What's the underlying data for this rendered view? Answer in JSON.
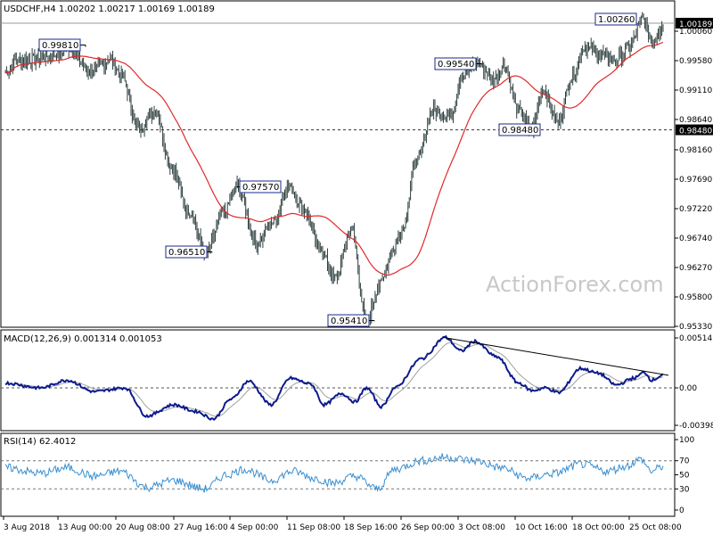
{
  "header": "USDCHF,H4  1.00202 1.00217 1.00169 1.00189",
  "watermark": "ActionForex.com",
  "colors": {
    "price": "#2f3f3f",
    "ma": "#e0282a",
    "macd": "#0c1a8c",
    "signal": "#a0a0a0",
    "rsi": "#3a8fd0",
    "annotation_border": "#1a2a8c",
    "current_bg": "#000000"
  },
  "chart_data": [
    {
      "type": "line",
      "title": "USDCHF,H4  1.00202 1.00217 1.00169 1.00189",
      "x": [
        "3 Aug 2018",
        "13 Aug 00:00",
        "20 Aug 08:00",
        "27 Aug 16:00",
        "4 Sep 00:00",
        "11 Sep 08:00",
        "18 Sep 16:00",
        "26 Sep 00:00",
        "3 Oct 08:00",
        "10 Oct 16:00",
        "18 Oct 00:00",
        "25 Oct 08:00"
      ],
      "series": [],
      "ylim": [
        0.9533,
        1.0085
      ],
      "y_ticks": [
        "1.00060",
        "0.99580",
        "0.99110",
        "0.98640",
        "0.98160",
        "0.97690",
        "0.97220",
        "0.96740",
        "0.96270",
        "0.95800",
        "0.95330"
      ],
      "current_price": "1.00189",
      "level_line": "0.98480",
      "annotations": [
        {
          "label": "0.99810",
          "value": 0.9981,
          "date": "10 Aug"
        },
        {
          "label": "0.96510",
          "value": 0.9651,
          "date": "29 Aug"
        },
        {
          "label": "0.97570",
          "value": 0.9757,
          "date": "5 Sep"
        },
        {
          "label": "0.95410",
          "value": 0.9541,
          "date": "20 Sep"
        },
        {
          "label": "0.99540",
          "value": 0.9954,
          "date": "5 Oct"
        },
        {
          "label": "0.98480",
          "value": 0.9848,
          "date": "12 Oct"
        },
        {
          "label": "1.00260",
          "value": 1.0026,
          "date": "26 Oct"
        }
      ]
    },
    {
      "type": "line",
      "title": "MACD(12,26,9) 0.001314 0.001053",
      "ylim": [
        -0.0045,
        0.0057
      ],
      "y_ticks": [
        "0.005145",
        "0.00",
        "-0.003989"
      ]
    },
    {
      "type": "line",
      "title": "RSI(14) 62.4012",
      "ylim": [
        0,
        100
      ],
      "y_ticks": [
        "100",
        "70",
        "50",
        "30",
        "0"
      ],
      "last_value": 62.4012
    }
  ]
}
